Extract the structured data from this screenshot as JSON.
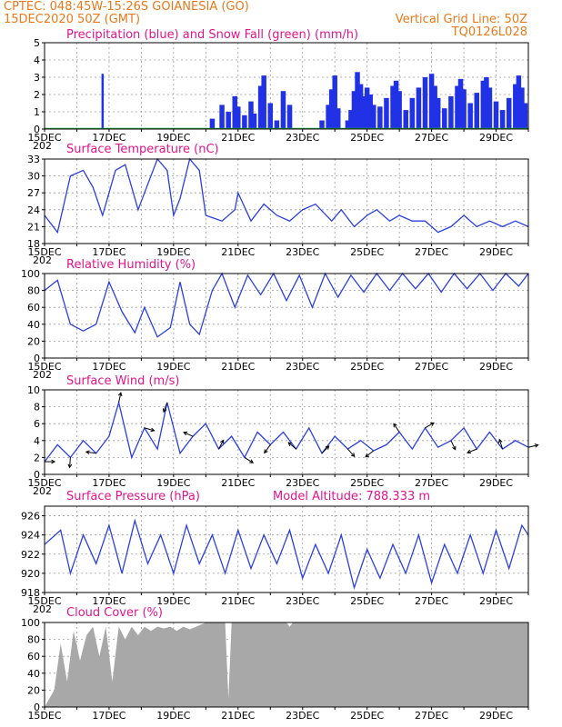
{
  "header": {
    "line1": "CPTEC:    048:45W-15:26S   GOIANESIA (GO)",
    "line2": "15DEC2020 50Z (GMT)",
    "grid_note": "Vertical Grid Line: 50Z",
    "code": "TQ0126L028"
  },
  "colors": {
    "header": "#e8791b",
    "title": "#e0158c",
    "line": "#2b3fe0",
    "precip": "#2131e6",
    "snow": "#1fae3b",
    "cloud": "#a8a8a8",
    "arrow": "#000000"
  },
  "x_date_labels": [
    "15DEC",
    "17DEC",
    "19DEC",
    "21DEC",
    "23DEC",
    "25DEC",
    "27DEC",
    "29DEC"
  ],
  "x_partial_label": "202",
  "chart_data": [
    {
      "id": "precip",
      "type": "bar",
      "title": "Precipitation (blue) and Snow Fall (green) (mm/h)",
      "ylim": [
        0,
        5
      ],
      "yticks": [
        0,
        1,
        2,
        3,
        4,
        5
      ],
      "xlim": [
        0,
        15
      ],
      "grid": true,
      "series": [
        {
          "name": "Precipitation (blue)",
          "values": [
            [
              1.8,
              3.2
            ],
            [
              5.2,
              0.6
            ],
            [
              5.5,
              1.4
            ],
            [
              5.7,
              1.0
            ],
            [
              5.9,
              1.9
            ],
            [
              6.0,
              1.3
            ],
            [
              6.2,
              0.8
            ],
            [
              6.4,
              1.6
            ],
            [
              6.5,
              0.9
            ],
            [
              6.7,
              2.5
            ],
            [
              6.8,
              3.1
            ],
            [
              7.0,
              1.5
            ],
            [
              7.2,
              0.5
            ],
            [
              7.4,
              2.2
            ],
            [
              7.6,
              1.4
            ],
            [
              8.6,
              0.5
            ],
            [
              8.8,
              1.4
            ],
            [
              8.9,
              2.3
            ],
            [
              9.0,
              3.1
            ],
            [
              9.1,
              1.2
            ],
            [
              9.4,
              0.5
            ],
            [
              9.5,
              1.1
            ],
            [
              9.6,
              2.2
            ],
            [
              9.7,
              3.3
            ],
            [
              9.8,
              2.6
            ],
            [
              9.9,
              1.9
            ],
            [
              10.0,
              2.4
            ],
            [
              10.1,
              2.0
            ],
            [
              10.2,
              1.4
            ],
            [
              10.4,
              1.3
            ],
            [
              10.6,
              1.8
            ],
            [
              10.8,
              2.5
            ],
            [
              10.9,
              2.8
            ],
            [
              11.0,
              2.2
            ],
            [
              11.2,
              1.1
            ],
            [
              11.4,
              1.8
            ],
            [
              11.6,
              2.4
            ],
            [
              11.8,
              3.0
            ],
            [
              12.0,
              3.2
            ],
            [
              12.1,
              2.5
            ],
            [
              12.2,
              1.8
            ],
            [
              12.4,
              1.2
            ],
            [
              12.6,
              1.9
            ],
            [
              12.8,
              2.5
            ],
            [
              12.9,
              2.9
            ],
            [
              13.0,
              2.3
            ],
            [
              13.2,
              1.5
            ],
            [
              13.4,
              2.1
            ],
            [
              13.6,
              2.8
            ],
            [
              13.7,
              3.0
            ],
            [
              13.8,
              2.4
            ],
            [
              14.0,
              1.6
            ],
            [
              14.2,
              1.1
            ],
            [
              14.4,
              1.8
            ],
            [
              14.6,
              2.6
            ],
            [
              14.7,
              3.1
            ],
            [
              14.8,
              2.4
            ],
            [
              14.9,
              1.5
            ]
          ]
        },
        {
          "name": "Snow Fall (green)",
          "values": [
            [
              0,
              0
            ],
            [
              15,
              0
            ]
          ]
        }
      ]
    },
    {
      "id": "temp",
      "type": "line",
      "title": "Surface Temperature (nC)",
      "ylim": [
        18,
        33
      ],
      "yticks": [
        18,
        21,
        24,
        27,
        30,
        33
      ],
      "xlim": [
        0,
        15
      ],
      "grid": true,
      "series": [
        {
          "name": "",
          "values": [
            [
              0.0,
              23
            ],
            [
              0.4,
              20
            ],
            [
              0.8,
              30
            ],
            [
              1.2,
              31
            ],
            [
              1.5,
              28
            ],
            [
              1.8,
              23
            ],
            [
              2.0,
              27
            ],
            [
              2.2,
              31
            ],
            [
              2.5,
              32
            ],
            [
              2.9,
              24
            ],
            [
              3.1,
              27
            ],
            [
              3.5,
              33
            ],
            [
              3.8,
              31
            ],
            [
              4.0,
              23
            ],
            [
              4.2,
              26
            ],
            [
              4.5,
              33
            ],
            [
              4.8,
              31
            ],
            [
              5.0,
              23
            ],
            [
              5.5,
              22
            ],
            [
              5.9,
              24
            ],
            [
              6.0,
              27
            ],
            [
              6.4,
              22
            ],
            [
              6.8,
              25
            ],
            [
              7.2,
              23
            ],
            [
              7.6,
              22
            ],
            [
              8.0,
              24
            ],
            [
              8.4,
              25
            ],
            [
              8.9,
              22
            ],
            [
              9.2,
              24
            ],
            [
              9.6,
              21
            ],
            [
              10.0,
              23
            ],
            [
              10.3,
              24
            ],
            [
              10.7,
              22
            ],
            [
              11.0,
              23
            ],
            [
              11.4,
              22
            ],
            [
              11.8,
              22
            ],
            [
              12.2,
              20
            ],
            [
              12.6,
              21
            ],
            [
              13.0,
              23
            ],
            [
              13.4,
              21
            ],
            [
              13.8,
              22
            ],
            [
              14.2,
              21
            ],
            [
              14.6,
              22
            ],
            [
              15.0,
              21
            ]
          ]
        }
      ]
    },
    {
      "id": "rh",
      "type": "line",
      "title": "Relative Humidity (%)",
      "ylim": [
        0,
        100
      ],
      "yticks": [
        0,
        20,
        40,
        60,
        80,
        100
      ],
      "xlim": [
        0,
        15
      ],
      "grid": true,
      "series": [
        {
          "name": "",
          "values": [
            [
              0.0,
              80
            ],
            [
              0.4,
              92
            ],
            [
              0.8,
              40
            ],
            [
              1.2,
              32
            ],
            [
              1.6,
              40
            ],
            [
              2.0,
              90
            ],
            [
              2.4,
              55
            ],
            [
              2.8,
              30
            ],
            [
              3.1,
              60
            ],
            [
              3.5,
              25
            ],
            [
              3.9,
              36
            ],
            [
              4.2,
              90
            ],
            [
              4.5,
              40
            ],
            [
              4.8,
              28
            ],
            [
              5.2,
              80
            ],
            [
              5.5,
              100
            ],
            [
              5.9,
              60
            ],
            [
              6.3,
              98
            ],
            [
              6.7,
              75
            ],
            [
              7.1,
              100
            ],
            [
              7.5,
              68
            ],
            [
              7.9,
              98
            ],
            [
              8.3,
              60
            ],
            [
              8.7,
              100
            ],
            [
              9.1,
              72
            ],
            [
              9.5,
              98
            ],
            [
              9.9,
              78
            ],
            [
              10.3,
              100
            ],
            [
              10.7,
              80
            ],
            [
              11.1,
              100
            ],
            [
              11.5,
              82
            ],
            [
              11.9,
              100
            ],
            [
              12.3,
              78
            ],
            [
              12.7,
              100
            ],
            [
              13.1,
              82
            ],
            [
              13.5,
              100
            ],
            [
              13.9,
              80
            ],
            [
              14.3,
              100
            ],
            [
              14.7,
              85
            ],
            [
              15.0,
              100
            ]
          ]
        }
      ]
    },
    {
      "id": "wind",
      "type": "line",
      "title": "Surface Wind (m/s)",
      "ylim": [
        0,
        10
      ],
      "yticks": [
        0,
        2,
        4,
        6,
        8,
        10
      ],
      "xlim": [
        0,
        15
      ],
      "grid": true,
      "series": [
        {
          "name": "",
          "values": [
            [
              0.0,
              1.5
            ],
            [
              0.4,
              3.5
            ],
            [
              0.8,
              2.0
            ],
            [
              1.2,
              4.0
            ],
            [
              1.6,
              2.5
            ],
            [
              2.0,
              4.5
            ],
            [
              2.3,
              8.5
            ],
            [
              2.7,
              2.0
            ],
            [
              3.1,
              5.5
            ],
            [
              3.5,
              3.0
            ],
            [
              3.8,
              8.5
            ],
            [
              4.2,
              2.5
            ],
            [
              4.6,
              4.5
            ],
            [
              5.0,
              6.0
            ],
            [
              5.4,
              3.0
            ],
            [
              5.8,
              4.5
            ],
            [
              6.2,
              2.0
            ],
            [
              6.6,
              5.0
            ],
            [
              7.0,
              3.5
            ],
            [
              7.4,
              5.0
            ],
            [
              7.8,
              3.0
            ],
            [
              8.2,
              5.5
            ],
            [
              8.6,
              2.5
            ],
            [
              9.0,
              4.5
            ],
            [
              9.4,
              3.0
            ],
            [
              9.8,
              4.0
            ],
            [
              10.2,
              2.8
            ],
            [
              10.6,
              3.5
            ],
            [
              11.0,
              5.0
            ],
            [
              11.4,
              3.0
            ],
            [
              11.8,
              5.5
            ],
            [
              12.2,
              3.2
            ],
            [
              12.6,
              4.0
            ],
            [
              13.0,
              5.5
            ],
            [
              13.4,
              3.0
            ],
            [
              13.8,
              5.0
            ],
            [
              14.2,
              3.0
            ],
            [
              14.6,
              4.0
            ],
            [
              15.0,
              3.2
            ]
          ]
        }
      ]
    },
    {
      "id": "pres",
      "type": "line",
      "title": "Surface Pressure (hPa)",
      "annotation": "Model Altitude: 788.333 m",
      "ylim": [
        918,
        927
      ],
      "yticks": [
        918,
        920,
        922,
        924,
        926
      ],
      "xlim": [
        0,
        15
      ],
      "grid": true,
      "series": [
        {
          "name": "",
          "values": [
            [
              0.0,
              923
            ],
            [
              0.5,
              924.5
            ],
            [
              0.8,
              920
            ],
            [
              1.2,
              924
            ],
            [
              1.6,
              921
            ],
            [
              2.0,
              925
            ],
            [
              2.4,
              920
            ],
            [
              2.8,
              925.5
            ],
            [
              3.2,
              921
            ],
            [
              3.6,
              924
            ],
            [
              4.0,
              920
            ],
            [
              4.4,
              925
            ],
            [
              4.8,
              921
            ],
            [
              5.2,
              924
            ],
            [
              5.6,
              920
            ],
            [
              6.0,
              924.5
            ],
            [
              6.4,
              920.5
            ],
            [
              6.8,
              924
            ],
            [
              7.2,
              921
            ],
            [
              7.6,
              924.5
            ],
            [
              8.0,
              919.5
            ],
            [
              8.4,
              923
            ],
            [
              8.8,
              920
            ],
            [
              9.2,
              924
            ],
            [
              9.6,
              918.5
            ],
            [
              10.0,
              922.5
            ],
            [
              10.4,
              919.5
            ],
            [
              10.8,
              923
            ],
            [
              11.2,
              920
            ],
            [
              11.6,
              924
            ],
            [
              12.0,
              919
            ],
            [
              12.4,
              923
            ],
            [
              12.8,
              920
            ],
            [
              13.2,
              924
            ],
            [
              13.6,
              920
            ],
            [
              14.0,
              924.5
            ],
            [
              14.4,
              920.5
            ],
            [
              14.8,
              925
            ],
            [
              15.0,
              924
            ]
          ]
        }
      ]
    },
    {
      "id": "cloud",
      "type": "bar",
      "title": "Cloud Cover (%)",
      "ylim": [
        0,
        100
      ],
      "yticks": [
        0,
        20,
        40,
        60,
        80,
        100
      ],
      "xlim": [
        0,
        15
      ],
      "grid": true,
      "series": [
        {
          "name": "",
          "values": [
            [
              0.0,
              0
            ],
            [
              0.3,
              20
            ],
            [
              0.5,
              75
            ],
            [
              0.7,
              30
            ],
            [
              0.9,
              90
            ],
            [
              1.1,
              55
            ],
            [
              1.3,
              85
            ],
            [
              1.5,
              95
            ],
            [
              1.7,
              60
            ],
            [
              1.9,
              95
            ],
            [
              2.1,
              30
            ],
            [
              2.3,
              95
            ],
            [
              2.5,
              80
            ],
            [
              2.7,
              95
            ],
            [
              2.9,
              85
            ],
            [
              3.1,
              95
            ],
            [
              3.3,
              90
            ],
            [
              3.5,
              95
            ],
            [
              3.7,
              93
            ],
            [
              3.9,
              95
            ],
            [
              4.1,
              90
            ],
            [
              4.3,
              95
            ],
            [
              4.5,
              92
            ],
            [
              4.7,
              95
            ],
            [
              5.0,
              100
            ],
            [
              5.6,
              100
            ],
            [
              5.7,
              10
            ],
            [
              5.8,
              100
            ],
            [
              7.5,
              100
            ],
            [
              7.6,
              95
            ],
            [
              7.7,
              100
            ],
            [
              15.0,
              100
            ]
          ]
        }
      ]
    }
  ]
}
